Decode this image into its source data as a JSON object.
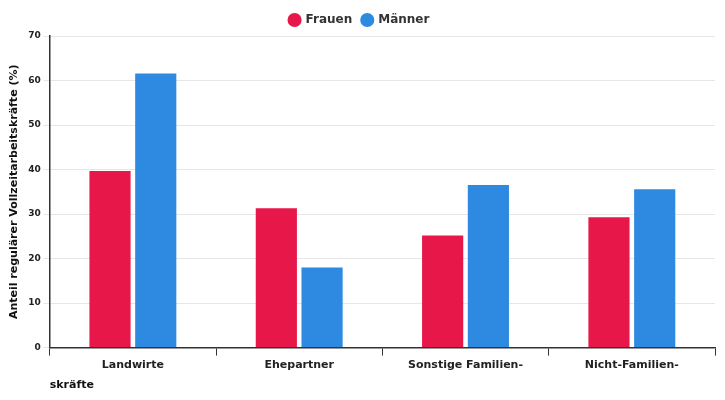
{
  "chart_data": {
    "type": "bar",
    "x_label": "skräfte",
    "y_label": "Anteil regulärer Vollzeitarbeitskräfte (%)",
    "categories": [
      "Landwirte",
      "Ehepartner",
      "Sonstige Familien-",
      "Nicht-Familien-"
    ],
    "series": [
      {
        "name": "Frauen",
        "color": "#e8174a",
        "values": [
          39.7,
          31.3,
          25.2,
          29.3
        ]
      },
      {
        "name": "Männer",
        "color": "#2e8ae0",
        "values": [
          61.6,
          18.0,
          36.5,
          35.6
        ]
      }
    ],
    "ylim": [
      0,
      70
    ],
    "yticks": [
      0,
      10,
      20,
      30,
      40,
      50,
      60,
      70
    ],
    "grid": true,
    "legend": "top"
  }
}
